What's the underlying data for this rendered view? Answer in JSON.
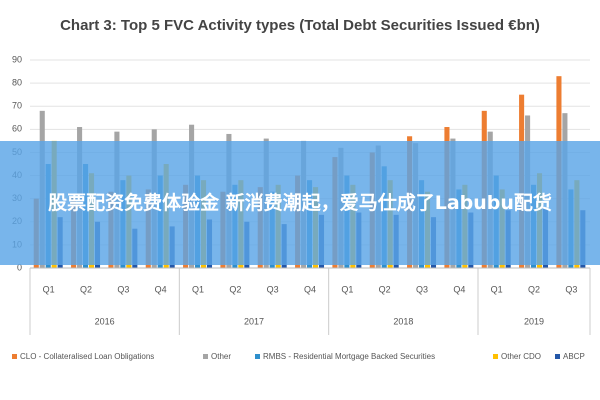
{
  "chart_data": {
    "type": "bar",
    "title": "Chart 3: Top 5 FVC Activity types (Total Debt Securities Issued €bn)",
    "groups": [
      {
        "label": "2016",
        "categories": [
          "Q1",
          "Q2",
          "Q3",
          "Q4"
        ]
      },
      {
        "label": "2017",
        "categories": [
          "Q1",
          "Q2",
          "Q3",
          "Q4"
        ]
      },
      {
        "label": "2018",
        "categories": [
          "Q1",
          "Q2",
          "Q3",
          "Q4"
        ]
      },
      {
        "label": "2019",
        "categories": [
          "Q1",
          "Q2",
          "Q3"
        ]
      }
    ],
    "series": [
      {
        "name": "CLO - Collateralised Loan Obligations",
        "color": "#ed7d31",
        "values": [
          30,
          31,
          33,
          34,
          36,
          33,
          35,
          40,
          48,
          50,
          57,
          61,
          68,
          75,
          83
        ]
      },
      {
        "name": "Other",
        "color": "#a5a5a5",
        "values": [
          68,
          61,
          59,
          60,
          62,
          58,
          56,
          55,
          52,
          53,
          54,
          56,
          59,
          66,
          67
        ]
      },
      {
        "name": "RMBS - Residential Mortgage Backed Securities",
        "color": "#2e8fcc",
        "values": [
          45,
          45,
          38,
          40,
          40,
          36,
          33,
          38,
          40,
          44,
          38,
          34,
          40,
          36,
          34
        ]
      },
      {
        "name": "Other CDO",
        "color": "#ffc000",
        "values": [
          55,
          41,
          40,
          45,
          38,
          38,
          36,
          35,
          36,
          38,
          33,
          36,
          34,
          41,
          38
        ]
      },
      {
        "name": "ABCP",
        "color": "#2457a8",
        "values": [
          22,
          20,
          17,
          18,
          21,
          20,
          19,
          23,
          24,
          23,
          22,
          24,
          25,
          26,
          25
        ]
      }
    ],
    "ylim": [
      0,
      90
    ],
    "yticks": [
      0,
      10,
      20,
      30,
      40,
      50,
      60,
      70,
      80,
      90
    ],
    "grid": true
  },
  "overlay": {
    "text": "股票配资免费体验金 新消费潮起，爱马仕成了Labubu配货"
  }
}
